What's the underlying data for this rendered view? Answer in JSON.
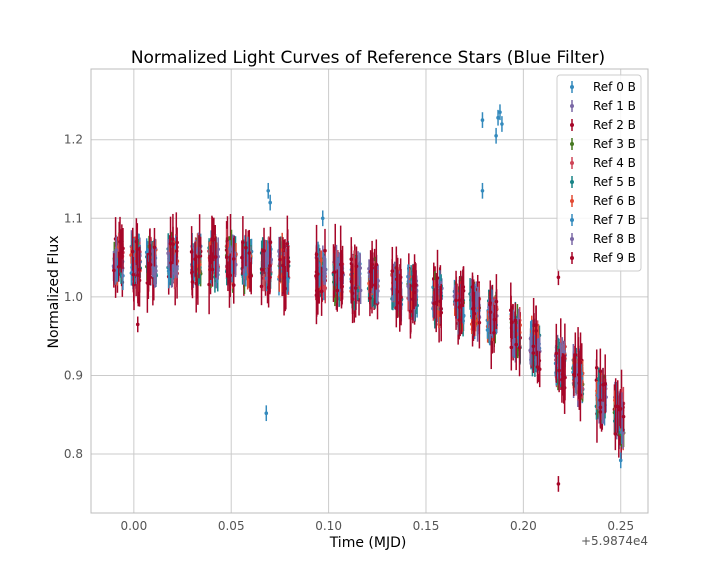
{
  "chart_data": {
    "type": "scatter",
    "title": "Normalized Light Curves of Reference Stars (Blue Filter)",
    "xlabel": "Time (MJD)",
    "ylabel": "Normalized Flux",
    "x_offset_label": "+5.9874e4",
    "xlim": [
      -0.022,
      0.264
    ],
    "ylim": [
      0.725,
      1.29
    ],
    "x_ticks": [
      0.0,
      0.05,
      0.1,
      0.15,
      0.2,
      0.25
    ],
    "x_tick_labels": [
      "0.00",
      "0.05",
      "0.10",
      "0.15",
      "0.20",
      "0.25"
    ],
    "y_ticks": [
      0.8,
      0.9,
      1.0,
      1.1,
      1.2
    ],
    "y_tick_labels": [
      "0.8",
      "0.9",
      "1.0",
      "1.1",
      "1.2"
    ],
    "grid": true,
    "legend_position": "top-right",
    "cluster_times": [
      -0.008,
      0.001,
      0.009,
      0.02,
      0.032,
      0.041,
      0.05,
      0.058,
      0.068,
      0.077,
      0.096,
      0.105,
      0.114,
      0.123,
      0.135,
      0.143,
      0.156,
      0.167,
      0.175,
      0.184,
      0.196,
      0.206,
      0.219,
      0.228,
      0.24,
      0.249
    ],
    "series": [
      {
        "name": "Ref 0 B",
        "color": "#348abd"
      },
      {
        "name": "Ref 1 B",
        "color": "#7a68a6"
      },
      {
        "name": "Ref 2 B",
        "color": "#a60628"
      },
      {
        "name": "Ref 3 B",
        "color": "#467821"
      },
      {
        "name": "Ref 4 B",
        "color": "#cf4457"
      },
      {
        "name": "Ref 5 B",
        "color": "#188487"
      },
      {
        "name": "Ref 6 B",
        "color": "#e24a33"
      },
      {
        "name": "Ref 7 B",
        "color": "#348abd"
      },
      {
        "name": "Ref 8 B",
        "color": "#7a68a6"
      },
      {
        "name": "Ref 9 B",
        "color": "#a60628"
      }
    ],
    "outliers": [
      {
        "series": 0,
        "x": 0.068,
        "y": 0.852
      },
      {
        "series": 0,
        "x": 0.069,
        "y": 1.135
      },
      {
        "series": 0,
        "x": 0.07,
        "y": 1.12
      },
      {
        "series": 0,
        "x": 0.097,
        "y": 1.1
      },
      {
        "series": 0,
        "x": 0.179,
        "y": 1.135
      },
      {
        "series": 0,
        "x": 0.179,
        "y": 1.225
      },
      {
        "series": 0,
        "x": 0.186,
        "y": 1.205
      },
      {
        "series": 0,
        "x": 0.187,
        "y": 1.228
      },
      {
        "series": 0,
        "x": 0.188,
        "y": 1.235
      },
      {
        "series": 0,
        "x": 0.189,
        "y": 1.22
      },
      {
        "series": 9,
        "x": 0.218,
        "y": 0.762
      },
      {
        "series": 9,
        "x": 0.218,
        "y": 1.025
      },
      {
        "series": 9,
        "x": 0.002,
        "y": 0.965
      },
      {
        "series": 0,
        "x": 0.25,
        "y": 0.792
      }
    ]
  }
}
